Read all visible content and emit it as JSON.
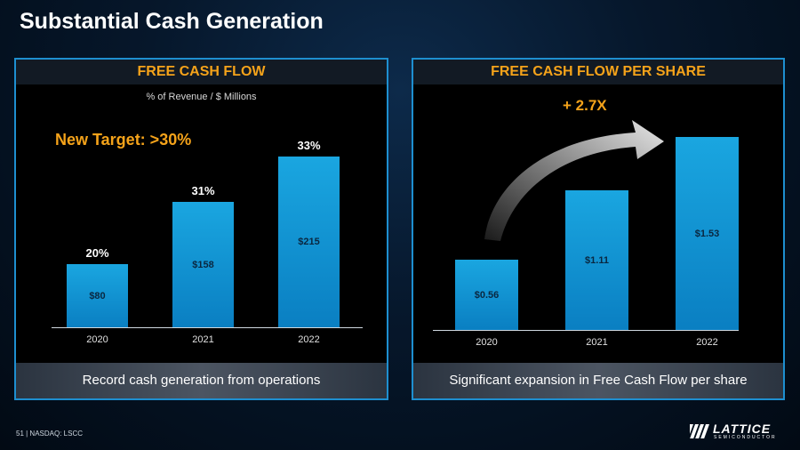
{
  "slide": {
    "title": "Substantial Cash Generation",
    "page_number": "51",
    "footer_ticker": "NASDAQ: LSCC",
    "page_footer": "51 | NASDAQ: LSCC"
  },
  "left_panel": {
    "header": "FREE CASH FLOW",
    "subtitle": "% of Revenue / $ Millions",
    "target_label": "New Target: >30%",
    "caption": "Record cash generation from operations"
  },
  "right_panel": {
    "header": "FREE CASH FLOW PER SHARE",
    "growth_label": "+ 2.7X",
    "caption": "Significant expansion in Free Cash Flow per share"
  },
  "logo": {
    "word": "LATTICE",
    "sub": "SEMICONDUCTOR"
  },
  "chart_data": [
    {
      "type": "bar",
      "title": "FREE CASH FLOW",
      "categories": [
        "2020",
        "2021",
        "2022"
      ],
      "values": [
        80,
        158,
        215
      ],
      "value_labels": [
        "$80",
        "$158",
        "$215"
      ],
      "pct_labels": [
        "20%",
        "31%",
        "33%"
      ],
      "ylabel": "% of Revenue / $ Millions",
      "ylim": [
        0,
        230
      ]
    },
    {
      "type": "bar",
      "title": "FREE CASH FLOW PER SHARE",
      "categories": [
        "2020",
        "2021",
        "2022"
      ],
      "values": [
        0.56,
        1.11,
        1.53
      ],
      "value_labels": [
        "$0.56",
        "$1.11",
        "$1.53"
      ],
      "ylim": [
        0,
        1.7
      ]
    }
  ]
}
